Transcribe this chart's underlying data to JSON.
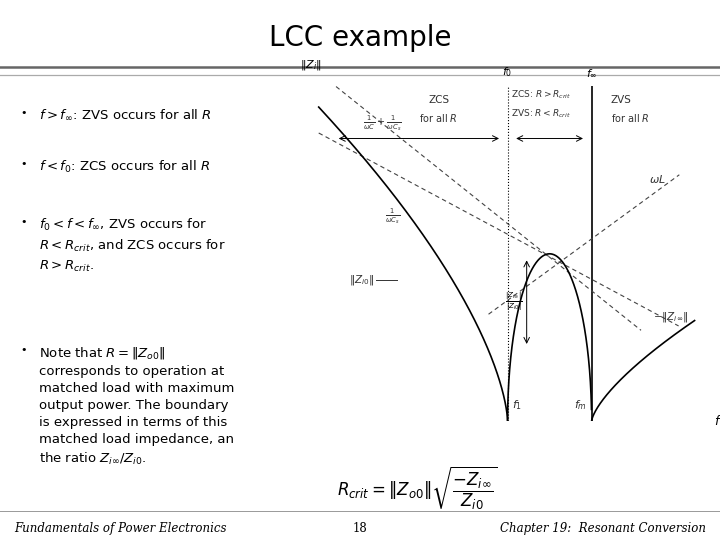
{
  "title": "LCC example",
  "title_fontsize": 20,
  "bg_color": "#ffffff",
  "bullet_items": [
    "$f > f_{\\infty}$: ZVS occurs for all $R$",
    "$f < f_0$: ZCS occurs for all $R$",
    "$f_0 < f < f_{\\infty}$, ZVS occurs for\n$R< R_{crit}$, and ZCS occurs for\n$R> R_{crit}$.",
    "Note that $R = \\| Z_{o0} \\|$\ncorresponds to operation at\nmatched load with maximum\noutput power. The boundary\nis expressed in terms of this\nmatched load impedance, an\nthe ratio $Z_{i\\infty} / Z_{i0}$."
  ],
  "footer_left": "Fundamentals of Power Electronics",
  "footer_center": "18",
  "footer_right": "Chapter 19:  Resonant Conversion",
  "footer_fontsize": 8.5,
  "formula_text": "$R_{crit} = \\| Z_{o0} \\| \\sqrt{\\dfrac{-Z_{i\\infty}}{Z_{i0}}}$",
  "graph_color": "#555555",
  "f0": 5.0,
  "finf": 7.2
}
